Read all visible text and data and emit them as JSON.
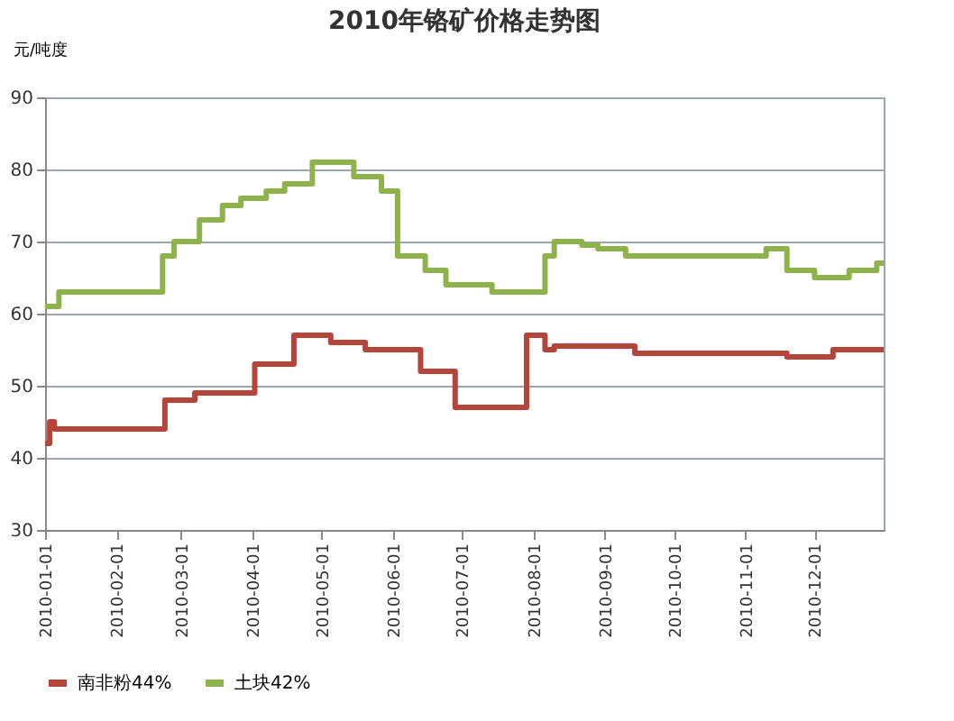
{
  "chart_data": {
    "type": "step",
    "title": "2010年铬矿价格走势图",
    "ylabel": "元/吨度",
    "series": [
      {
        "name": "南非粉44%",
        "color": "#b5443a",
        "x": [
          "2010-01-01",
          "2010-01-03",
          "2010-01-05",
          "2010-02-22",
          "2010-03-07",
          "2010-04-02",
          "2010-04-19",
          "2010-05-05",
          "2010-05-20",
          "2010-06-13",
          "2010-06-28",
          "2010-07-29",
          "2010-08-06",
          "2010-08-10",
          "2010-09-14",
          "2010-11-19",
          "2010-12-09",
          "2010-12-31"
        ],
        "values": [
          42,
          45,
          44,
          48,
          49,
          53,
          57,
          56,
          55,
          52,
          47,
          57,
          55,
          55.5,
          54.5,
          54,
          55,
          55
        ]
      },
      {
        "name": "土块42%",
        "color": "#8db34a",
        "x": [
          "2010-01-01",
          "2010-01-07",
          "2010-02-21",
          "2010-02-26",
          "2010-03-09",
          "2010-03-19",
          "2010-03-27",
          "2010-04-07",
          "2010-04-15",
          "2010-04-27",
          "2010-05-15",
          "2010-05-27",
          "2010-06-03",
          "2010-06-15",
          "2010-06-24",
          "2010-07-14",
          "2010-08-06",
          "2010-08-10",
          "2010-08-22",
          "2010-08-29",
          "2010-09-10",
          "2010-11-10",
          "2010-11-19",
          "2010-12-01",
          "2010-12-16",
          "2010-12-28",
          "2010-12-31"
        ],
        "values": [
          61,
          63,
          68,
          70,
          73,
          75,
          76,
          77,
          78,
          81,
          79,
          77,
          68,
          66,
          64,
          63,
          68,
          70,
          69.5,
          69,
          68,
          69,
          66,
          65,
          66,
          67,
          67
        ]
      }
    ],
    "xlim": [
      "2010-01-01",
      "2010-12-31"
    ],
    "xticks": [
      "2010-01-01",
      "2010-02-01",
      "2010-03-01",
      "2010-04-01",
      "2010-05-01",
      "2010-06-01",
      "2010-07-01",
      "2010-08-01",
      "2010-09-01",
      "2010-10-01",
      "2010-11-01",
      "2010-12-01"
    ],
    "ylim": [
      30,
      90
    ],
    "yticks": [
      30,
      40,
      50,
      60,
      70,
      80,
      90
    ],
    "grid": "y",
    "legend": "bottom",
    "line_style": "solid",
    "marker": "none"
  }
}
